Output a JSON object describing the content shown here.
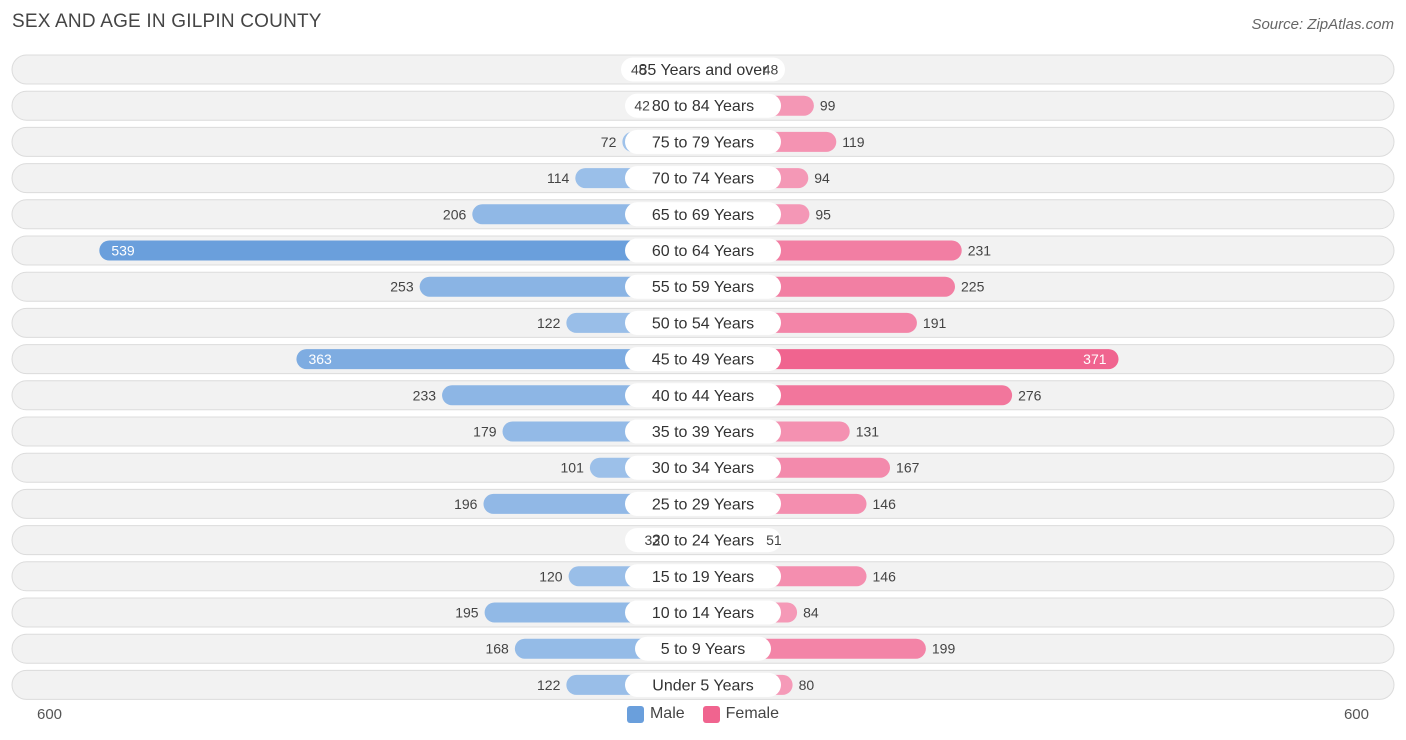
{
  "title": "SEX AND AGE IN GILPIN COUNTY",
  "source": "Source: ZipAtlas.com",
  "legend": {
    "male": "Male",
    "female": "Female"
  },
  "axis": {
    "left_tick": "600",
    "right_tick": "600"
  },
  "colors": {
    "male": "#6a9fdc",
    "male_light": "#a7c7ec",
    "female": "#f0648f",
    "female_light": "#f6a9c3"
  },
  "chart_data": {
    "type": "bar",
    "orientation": "horizontal-diverging",
    "categories": [
      "85 Years and over",
      "80 to 84 Years",
      "75 to 79 Years",
      "70 to 74 Years",
      "65 to 69 Years",
      "60 to 64 Years",
      "55 to 59 Years",
      "50 to 54 Years",
      "45 to 49 Years",
      "40 to 44 Years",
      "35 to 39 Years",
      "30 to 34 Years",
      "25 to 29 Years",
      "20 to 24 Years",
      "15 to 19 Years",
      "10 to 14 Years",
      "5 to 9 Years",
      "Under 5 Years"
    ],
    "series": [
      {
        "name": "Male",
        "values": [
          45,
          42,
          72,
          114,
          206,
          539,
          253,
          122,
          363,
          233,
          179,
          101,
          196,
          33,
          120,
          195,
          168,
          122
        ]
      },
      {
        "name": "Female",
        "values": [
          48,
          99,
          119,
          94,
          95,
          231,
          225,
          191,
          371,
          276,
          131,
          167,
          146,
          51,
          146,
          84,
          199,
          80
        ]
      }
    ],
    "xlim": [
      -600,
      600
    ],
    "legend_position": "bottom-center"
  }
}
